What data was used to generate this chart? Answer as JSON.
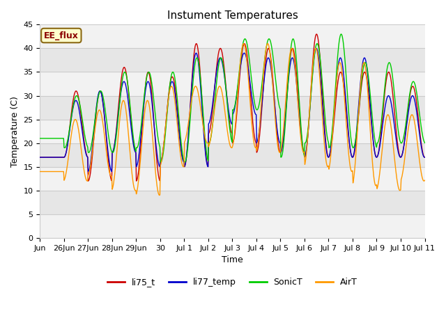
{
  "title": "Instument Temperatures",
  "xlabel": "Time",
  "ylabel": "Temperature (C)",
  "ylim": [
    0,
    45
  ],
  "yticks": [
    0,
    5,
    10,
    15,
    20,
    25,
    30,
    35,
    40,
    45
  ],
  "annotation": "EE_flux",
  "background_color": "#ffffff",
  "plot_bg_color": "#ffffff",
  "series_colors": {
    "li75_t": "#cc0000",
    "li77_temp": "#0000cc",
    "SonicT": "#00cc00",
    "AirT": "#ff9900"
  },
  "x_tick_labels": [
    "Jun",
    "26Jun",
    "27Jun",
    "28Jun",
    "29Jun",
    "30",
    "Jul 1",
    "Jul 2",
    "Jul 3",
    "Jul 4",
    "Jul 5",
    "Jul 6",
    "Jul 7",
    "Jul 8",
    "Jul 9",
    "Jul 10",
    "Jul 11"
  ],
  "band_colors": [
    "#f0f0f0",
    "#e0e0e0"
  ],
  "grid_line_color": "#cccccc",
  "figsize": [
    6.4,
    4.8
  ],
  "dpi": 100
}
